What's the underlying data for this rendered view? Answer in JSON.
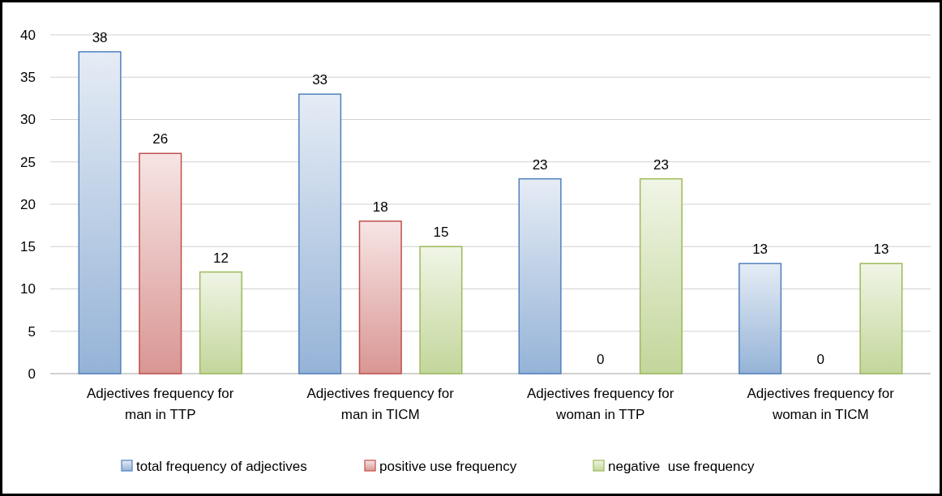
{
  "chart_data": {
    "type": "bar",
    "categories": [
      "Adjectives frequency for man in TTP",
      "Adjectives frequency for man in TICM",
      "Adjectives frequency for woman in TTP",
      "Adjectives frequency for woman in TICM"
    ],
    "series": [
      {
        "name": "total frequency of adjectives",
        "color": "#4f81bd",
        "values": [
          38,
          33,
          23,
          13
        ]
      },
      {
        "name": "positive use frequency",
        "color": "#c0504d",
        "values": [
          26,
          18,
          0,
          0
        ]
      },
      {
        "name": "negative  use frequency",
        "color": "#9bbb59",
        "values": [
          12,
          15,
          23,
          13
        ]
      }
    ],
    "ylim": [
      0,
      40
    ],
    "yticks": [
      0,
      5,
      10,
      15,
      20,
      25,
      30,
      35,
      40
    ],
    "grid": "y",
    "legend": "bottom",
    "data_labels": true
  }
}
